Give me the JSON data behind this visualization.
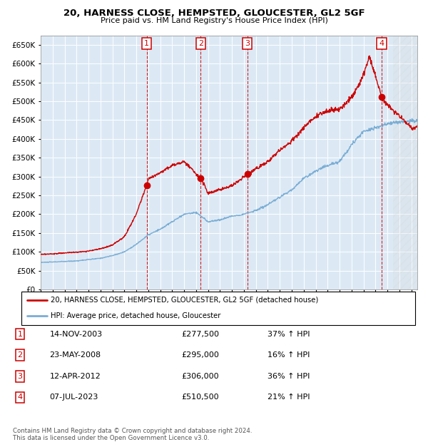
{
  "title": "20, HARNESS CLOSE, HEMPSTED, GLOUCESTER, GL2 5GF",
  "subtitle": "Price paid vs. HM Land Registry's House Price Index (HPI)",
  "plot_bg_color": "#dce9f5",
  "ylim": [
    0,
    675000
  ],
  "yticks": [
    0,
    50000,
    100000,
    150000,
    200000,
    250000,
    300000,
    350000,
    400000,
    450000,
    500000,
    550000,
    600000,
    650000
  ],
  "xlim_start": 1995.0,
  "xlim_end": 2026.5,
  "sales": [
    {
      "label": "1",
      "date_str": "14-NOV-2003",
      "year": 2003.87,
      "price": 277500,
      "pct": "37%",
      "dir": "↑"
    },
    {
      "label": "2",
      "date_str": "23-MAY-2008",
      "year": 2008.39,
      "price": 295000,
      "pct": "16%",
      "dir": "↑"
    },
    {
      "label": "3",
      "date_str": "12-APR-2012",
      "year": 2012.28,
      "price": 306000,
      "pct": "36%",
      "dir": "↑"
    },
    {
      "label": "4",
      "date_str": "07-JUL-2023",
      "year": 2023.52,
      "price": 510500,
      "pct": "21%",
      "dir": "↑"
    }
  ],
  "legend_label_red": "20, HARNESS CLOSE, HEMPSTED, GLOUCESTER, GL2 5GF (detached house)",
  "legend_label_blue": "HPI: Average price, detached house, Gloucester",
  "footer": "Contains HM Land Registry data © Crown copyright and database right 2024.\nThis data is licensed under the Open Government Licence v3.0.",
  "red_color": "#cc0000",
  "blue_color": "#7aadd4",
  "marker_color": "#cc0000",
  "dashed_color": "#cc0000",
  "hpi_waypoints_x": [
    1995,
    1996,
    1998,
    2000,
    2001,
    2002,
    2003,
    2004,
    2005,
    2006,
    2007,
    2008,
    2009,
    2010,
    2011,
    2012,
    2013,
    2014,
    2015,
    2016,
    2017,
    2018,
    2019,
    2020,
    2021,
    2022,
    2023,
    2024,
    2025,
    2026
  ],
  "hpi_waypoints_y": [
    72000,
    73000,
    76000,
    83000,
    90000,
    100000,
    120000,
    145000,
    160000,
    180000,
    200000,
    205000,
    180000,
    185000,
    195000,
    200000,
    210000,
    225000,
    245000,
    265000,
    295000,
    315000,
    330000,
    340000,
    385000,
    420000,
    430000,
    440000,
    445000,
    448000
  ],
  "red_waypoints_x": [
    1995,
    1996,
    1997,
    1998,
    1999,
    2000,
    2001,
    2002,
    2003,
    2003.87,
    2004,
    2005,
    2006,
    2007,
    2008.39,
    2008.8,
    2009,
    2010,
    2011,
    2012.28,
    2013,
    2014,
    2015,
    2016,
    2017,
    2018,
    2019,
    2020,
    2021,
    2022,
    2022.5,
    2023.52,
    2024,
    2024.5,
    2026
  ],
  "red_waypoints_y": [
    93000,
    95000,
    97000,
    99000,
    102000,
    108000,
    118000,
    140000,
    200000,
    277500,
    295000,
    310000,
    330000,
    340000,
    295000,
    270000,
    255000,
    265000,
    275000,
    306000,
    320000,
    340000,
    370000,
    395000,
    430000,
    460000,
    475000,
    480000,
    510000,
    570000,
    620000,
    510500,
    490000,
    475000,
    430000
  ]
}
